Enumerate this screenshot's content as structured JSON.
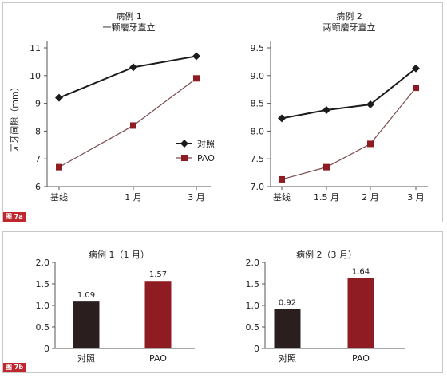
{
  "colors": {
    "control": "#1b1b1b",
    "pao": "#8e1c22",
    "bar_control": "#2a1e1f",
    "bar_pao": "#8e1c22",
    "tag": "#c0262e"
  },
  "figure_a": {
    "tag": "图 7a",
    "y_axis_label": "无牙间隙（mm）",
    "legend": [
      "对照",
      "PAO"
    ]
  },
  "figure_b": {
    "tag": "图 7b"
  },
  "chart_data": [
    {
      "type": "line",
      "title": "病例 1",
      "subtitle": "一颗磨牙直立",
      "ylabel": "无牙间隙（mm）",
      "categories": [
        "基线",
        "1 月",
        "3 月"
      ],
      "ylim": [
        6,
        11
      ],
      "yticks": [
        "6",
        "7",
        "8",
        "9",
        "10",
        "11"
      ],
      "series": [
        {
          "name": "对照",
          "values": [
            9.2,
            10.3,
            10.7
          ]
        },
        {
          "name": "PAO",
          "values": [
            6.7,
            8.2,
            9.9
          ]
        }
      ],
      "legend_position": "lower-right",
      "grid": false
    },
    {
      "type": "line",
      "title": "病例 2",
      "subtitle": "两颗磨牙直立",
      "categories": [
        "基线",
        "1.5 月",
        "2 月",
        "3 月"
      ],
      "ylim": [
        7.0,
        9.5
      ],
      "yticks": [
        "7.0",
        "7.5",
        "8.0",
        "8.5",
        "9.0",
        "9.5"
      ],
      "series": [
        {
          "name": "对照",
          "values": [
            8.23,
            8.38,
            8.48,
            9.13
          ]
        },
        {
          "name": "PAO",
          "values": [
            7.13,
            7.35,
            7.77,
            8.78
          ]
        }
      ],
      "grid": false
    },
    {
      "type": "bar",
      "title": "病例 1（1 月）",
      "categories": [
        "对照",
        "PAO"
      ],
      "values": [
        1.09,
        1.57
      ],
      "data_labels": [
        "1.09",
        "1.57"
      ],
      "ylim": [
        0,
        2.0
      ],
      "yticks": [
        "0",
        "0.5",
        "1.0",
        "1.5",
        "2.0"
      ],
      "grid": false
    },
    {
      "type": "bar",
      "title": "病例 2（3 月）",
      "categories": [
        "对照",
        "PAO"
      ],
      "values": [
        0.92,
        1.64
      ],
      "data_labels": [
        "0.92",
        "1.64"
      ],
      "ylim": [
        0,
        2.0
      ],
      "yticks": [
        "0",
        "0.5",
        "1.0",
        "1.5",
        "2.0"
      ],
      "grid": false
    }
  ]
}
